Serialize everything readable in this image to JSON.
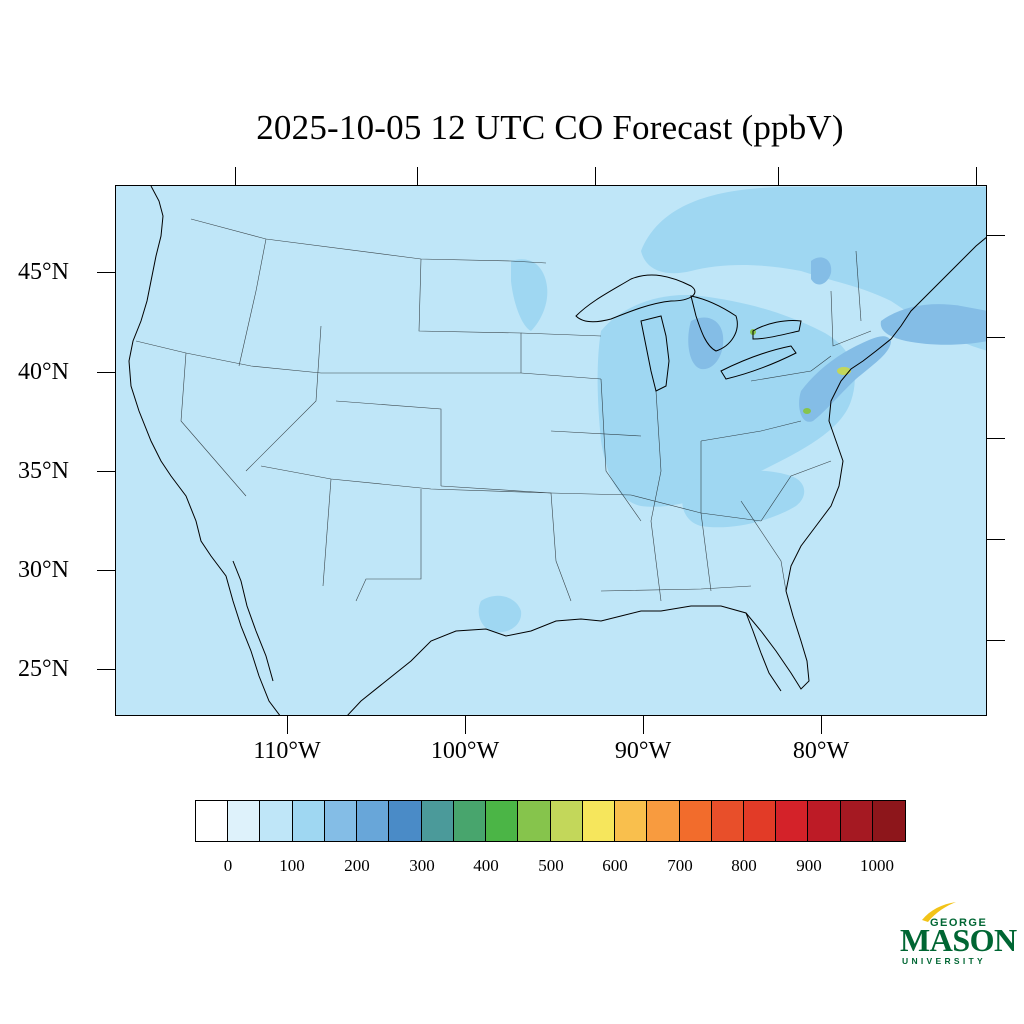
{
  "title": "2025-10-05 12 UTC CO Forecast (ppbV)",
  "lat_labels": [
    "45°N",
    "40°N",
    "35°N",
    "30°N",
    "25°N"
  ],
  "lon_labels": [
    "110°W",
    "100°W",
    "90°W",
    "80°W"
  ],
  "colorbar": {
    "colors": [
      "#ffffff",
      "#def2fb",
      "#bfe6f8",
      "#9fd7f2",
      "#84bde6",
      "#68a6d9",
      "#4a8bc7",
      "#4b9a9a",
      "#48a56d",
      "#4bb546",
      "#86c44c",
      "#c3d75a",
      "#f6e65c",
      "#f9bf4d",
      "#f89b3f",
      "#f26c2c",
      "#e84f2a",
      "#e23b27",
      "#d42229",
      "#bd1b26",
      "#a51922",
      "#8d161b"
    ],
    "labels": [
      "0",
      "100",
      "200",
      "300",
      "400",
      "500",
      "600",
      "700",
      "800",
      "900",
      "1000"
    ]
  },
  "logo": {
    "line1": "GEORGE",
    "line2": "MASON",
    "line3": "UNIVERSITY",
    "color": "#006633",
    "accent": "#f2c318"
  },
  "map": {
    "background_level_color": "#bfe6f8",
    "elevated_level_color": "#9fd7f2",
    "high_level_color": "#84bde6",
    "hotspot_color": "#c3d75a"
  }
}
